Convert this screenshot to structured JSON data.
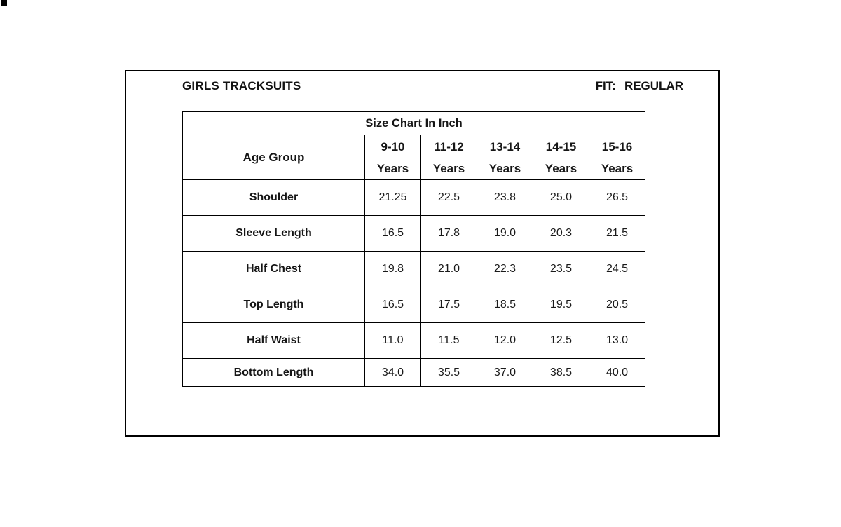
{
  "page": {
    "title": "GIRLS TRACKSUITS",
    "fit_label": "FIT:",
    "fit_value": "REGULAR"
  },
  "size_chart": {
    "title": "Size Chart In Inch",
    "row_header": "Age Group",
    "columns": [
      {
        "range": "9-10",
        "unit": "Years"
      },
      {
        "range": "11-12",
        "unit": "Years"
      },
      {
        "range": "13-14",
        "unit": "Years"
      },
      {
        "range": "14-15",
        "unit": "Years"
      },
      {
        "range": "15-16",
        "unit": "Years"
      }
    ],
    "rows": [
      {
        "label": "Shoulder",
        "values": [
          "21.25",
          "22.5",
          "23.8",
          "25.0",
          "26.5"
        ]
      },
      {
        "label": "Sleeve Length",
        "values": [
          "16.5",
          "17.8",
          "19.0",
          "20.3",
          "21.5"
        ]
      },
      {
        "label": "Half Chest",
        "values": [
          "19.8",
          "21.0",
          "22.3",
          "23.5",
          "24.5"
        ]
      },
      {
        "label": "Top Length",
        "values": [
          "16.5",
          "17.5",
          "18.5",
          "19.5",
          "20.5"
        ]
      },
      {
        "label": "Half Waist",
        "values": [
          "11.0",
          "11.5",
          "12.0",
          "12.5",
          "13.0"
        ]
      },
      {
        "label": "Bottom Length",
        "values": [
          "34.0",
          "35.5",
          "37.0",
          "38.5",
          "40.0"
        ]
      }
    ]
  },
  "chart_data": {
    "type": "table",
    "title": "Size Chart In Inch",
    "columns": [
      "Age Group",
      "9-10 Years",
      "11-12 Years",
      "13-14 Years",
      "14-15 Years",
      "15-16 Years"
    ],
    "rows": [
      [
        "Shoulder",
        21.25,
        22.5,
        23.8,
        25.0,
        26.5
      ],
      [
        "Sleeve Length",
        16.5,
        17.8,
        19.0,
        20.3,
        21.5
      ],
      [
        "Half Chest",
        19.8,
        21.0,
        22.3,
        23.5,
        24.5
      ],
      [
        "Top Length",
        16.5,
        17.5,
        18.5,
        19.5,
        20.5
      ],
      [
        "Half Waist",
        11.0,
        11.5,
        12.0,
        12.5,
        13.0
      ],
      [
        "Bottom Length",
        34.0,
        35.5,
        37.0,
        38.5,
        40.0
      ]
    ]
  }
}
